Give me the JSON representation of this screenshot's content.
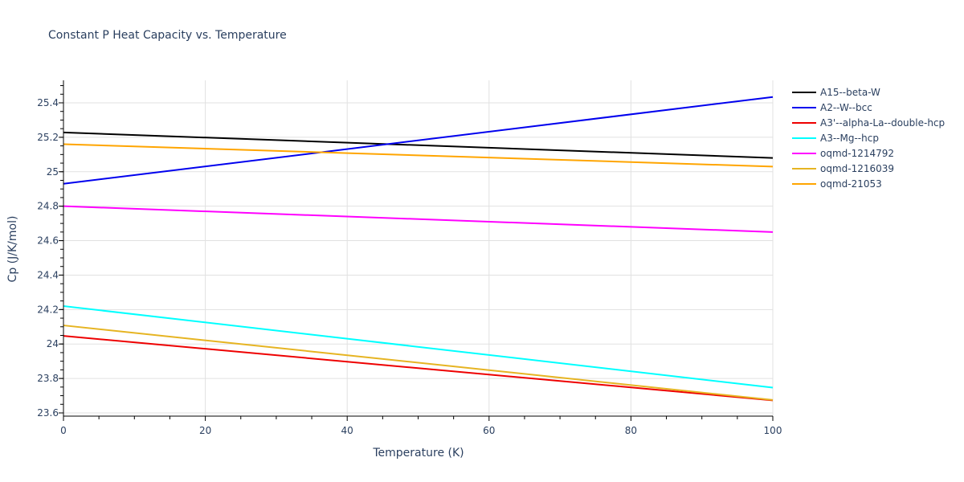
{
  "chart_data": {
    "type": "line",
    "title": "Constant P Heat Capacity vs. Temperature",
    "xlabel": "Temperature (K)",
    "ylabel": "Cp (J/K/mol)",
    "xlim": [
      0,
      100
    ],
    "ylim": [
      23.58,
      25.53
    ],
    "x_ticks": [
      0,
      20,
      40,
      60,
      80,
      100
    ],
    "x_tick_labels": [
      "0",
      "20",
      "40",
      "60",
      "80",
      "100"
    ],
    "y_ticks": [
      23.6,
      23.8,
      24.0,
      24.2,
      24.4,
      24.6,
      24.8,
      25.0,
      25.2,
      25.4
    ],
    "y_tick_labels": [
      "23.6",
      "23.8",
      "24",
      "24.2",
      "24.4",
      "24.6",
      "24.8",
      "25",
      "25.2",
      "25.4"
    ],
    "grid": true,
    "legend_position": "right",
    "x": [
      0,
      100
    ],
    "series": [
      {
        "name": "A15--beta-W",
        "color": "#000000",
        "values": [
          25.228,
          25.08
        ]
      },
      {
        "name": "A2--W--bcc",
        "color": "#0000ee",
        "values": [
          24.93,
          25.434
        ]
      },
      {
        "name": "A3'--alpha-La--double-hcp",
        "color": "#ee0000",
        "values": [
          24.047,
          23.673
        ]
      },
      {
        "name": "A3--Mg--hcp",
        "color": "#00ffff",
        "values": [
          24.22,
          23.747
        ]
      },
      {
        "name": "oqmd-1214792",
        "color": "#ff00ff",
        "values": [
          24.8,
          24.65
        ]
      },
      {
        "name": "oqmd-1216039",
        "color": "#e6b422",
        "values": [
          24.108,
          23.675
        ]
      },
      {
        "name": "oqmd-21053",
        "color": "#ffa500",
        "values": [
          25.16,
          25.03
        ]
      }
    ]
  }
}
